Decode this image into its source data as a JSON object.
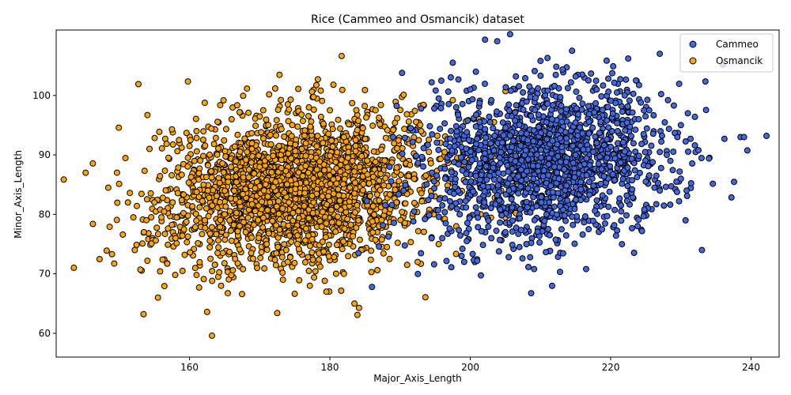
{
  "chart_data": {
    "type": "scatter",
    "title": "Rice (Cammeo and Osmancik) dataset",
    "xlabel": "Major_Axis_Length",
    "ylabel": "Minor_Axis_Length",
    "xlim": [
      141,
      244
    ],
    "ylim": [
      56,
      111
    ],
    "xticks": [
      160,
      180,
      200,
      220,
      240
    ],
    "yticks": [
      60,
      70,
      80,
      90,
      100
    ],
    "grid": false,
    "legend_position": "top-right",
    "series": [
      {
        "name": "Cammeo",
        "color": "#4169e1",
        "center": [
          211,
          89
        ],
        "spread": [
          8.5,
          6.5
        ],
        "count": 1630,
        "points": [
          [
            214.5,
            107.5
          ],
          [
            227,
            107
          ],
          [
            210,
            105.8
          ],
          [
            222.5,
            106.2
          ],
          [
            197.5,
            105.5
          ],
          [
            211,
            106.3
          ],
          [
            194.5,
            102.2
          ],
          [
            206.5,
            103.2
          ],
          [
            232,
            96.4
          ],
          [
            238.5,
            93
          ],
          [
            239,
            93
          ],
          [
            236.2,
            92.7
          ],
          [
            234,
            89.4
          ],
          [
            232,
            91.6
          ],
          [
            232.5,
            90.8
          ],
          [
            233,
            74
          ],
          [
            216.5,
            70.8
          ],
          [
            197.3,
            71.1
          ],
          [
            200.5,
            72.3
          ],
          [
            201,
            72.2
          ],
          [
            207,
            74.5
          ],
          [
            186,
            67.8
          ],
          [
            196,
            76
          ],
          [
            221.5,
            80.5
          ],
          [
            219.5,
            79.7
          ],
          [
            226.5,
            81.7
          ],
          [
            227,
            84
          ],
          [
            225,
            85.5
          ],
          [
            214.5,
            79.6
          ],
          [
            217.5,
            78.9
          ],
          [
            203,
            76
          ],
          [
            205,
            77
          ],
          [
            213,
            77.5
          ],
          [
            208,
            75
          ],
          [
            199.5,
            75.5
          ],
          [
            230,
            95
          ],
          [
            229,
            98.3
          ],
          [
            224.3,
            98.8
          ],
          [
            225.5,
            97.5
          ],
          [
            228,
            90
          ],
          [
            229.5,
            93
          ],
          [
            231,
            97
          ],
          [
            230,
            86
          ],
          [
            228.5,
            89
          ],
          [
            222,
            100
          ],
          [
            218,
            101
          ],
          [
            215,
            103.2
          ],
          [
            212,
            101.6
          ],
          [
            207.5,
            100.5
          ],
          [
            203,
            99.2
          ],
          [
            200,
            101
          ],
          [
            198,
            98
          ],
          [
            195.5,
            99.5
          ],
          [
            193,
            97.8
          ],
          [
            191.5,
            94.5
          ],
          [
            189,
            93
          ],
          [
            188.5,
            88
          ],
          [
            190.5,
            84
          ],
          [
            192,
            80.5
          ],
          [
            194.5,
            76
          ],
          [
            196.5,
            78.5
          ],
          [
            198.5,
            80
          ],
          [
            202,
            82
          ],
          [
            205.5,
            84
          ],
          [
            209,
            86
          ],
          [
            212,
            88
          ],
          [
            215,
            90
          ],
          [
            218,
            92
          ],
          [
            221,
            94
          ],
          [
            224,
            96
          ]
        ]
      },
      {
        "name": "Osmancik",
        "color": "#ffa500",
        "center": [
          175,
          84.5
        ],
        "spread": [
          9.5,
          6.2
        ],
        "count": 2180,
        "points": [
          [
            145.2,
            87
          ],
          [
            148.2,
            73.9
          ],
          [
            150.5,
            76.6
          ],
          [
            151.5,
            83.6
          ],
          [
            152,
            79.5
          ],
          [
            152.2,
            74
          ],
          [
            153,
            70.7
          ],
          [
            153.5,
            77
          ],
          [
            154,
            72.2
          ],
          [
            154,
            96.7
          ],
          [
            154.3,
            91
          ],
          [
            155,
            82
          ],
          [
            155.5,
            66
          ],
          [
            156,
            79.5
          ],
          [
            157,
            89.5
          ],
          [
            157.5,
            94.3
          ],
          [
            158,
            76
          ],
          [
            159,
            70.5
          ],
          [
            160,
            91.5
          ],
          [
            161,
            69.8
          ],
          [
            162.5,
            63.6
          ],
          [
            163.2,
            59.6
          ],
          [
            164,
            73.5
          ],
          [
            164.5,
            68
          ],
          [
            172.5,
            63.4
          ],
          [
            175.5,
            101.1
          ],
          [
            180.5,
            101.8
          ],
          [
            183.5,
            65
          ],
          [
            185,
            100.9
          ],
          [
            188.5,
            72.5
          ],
          [
            191,
            71.5
          ],
          [
            192.5,
            72
          ],
          [
            195.5,
            75
          ],
          [
            198,
            78
          ],
          [
            201.5,
            80
          ],
          [
            203.5,
            82.8
          ],
          [
            205,
            79.5
          ],
          [
            206.5,
            80.2
          ],
          [
            208.5,
            85.2
          ],
          [
            202.8,
            91.8
          ],
          [
            200.5,
            96
          ],
          [
            197.5,
            99.2
          ],
          [
            195,
            98
          ],
          [
            190.5,
            100.1
          ],
          [
            193,
            94
          ],
          [
            186.5,
            97.5
          ],
          [
            180,
            97.5
          ],
          [
            177,
            98
          ],
          [
            174,
            98.5
          ],
          [
            170.5,
            97.5
          ],
          [
            166,
            96
          ],
          [
            161,
            94
          ],
          [
            158.5,
            92.5
          ],
          [
            162,
            85
          ],
          [
            165,
            80
          ],
          [
            168,
            77
          ],
          [
            171,
            75
          ],
          [
            174,
            72
          ],
          [
            177,
            70.5
          ],
          [
            179.5,
            67
          ],
          [
            182,
            70
          ],
          [
            184.5,
            74
          ],
          [
            187,
            78
          ],
          [
            189.5,
            82
          ],
          [
            192,
            86
          ],
          [
            170,
            88
          ],
          [
            173,
            90
          ],
          [
            176,
            91
          ],
          [
            179,
            92
          ],
          [
            182,
            93
          ]
        ]
      }
    ]
  }
}
